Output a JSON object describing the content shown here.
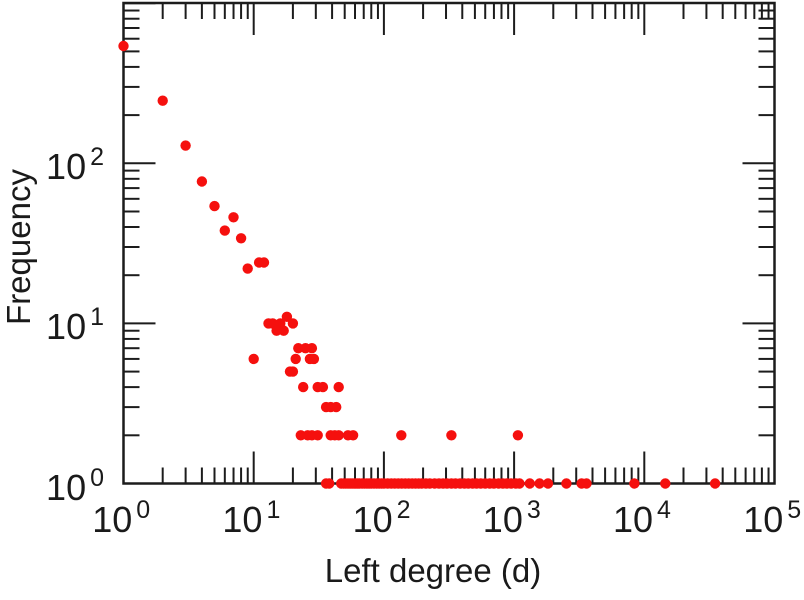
{
  "figure": {
    "background_color": "#ffffff",
    "axis_color": "#1c1c1c",
    "text_color": "#1a1a1a"
  },
  "chart_data": {
    "type": "scatter",
    "title": "",
    "xlabel": "Left degree (d)",
    "ylabel": "Frequency",
    "xscale": "log",
    "yscale": "log",
    "xlim": [
      1,
      100000
    ],
    "ylim": [
      1,
      1000
    ],
    "grid": false,
    "legend": null,
    "tick_base": "10",
    "x_tick_exponents": [
      0,
      1,
      2,
      3,
      4,
      5
    ],
    "y_tick_exponents": [
      0,
      1,
      2
    ],
    "marker_color": "#f5100e",
    "marker_radius": 5.2,
    "points": [
      [
        1,
        540
      ],
      [
        2,
        246
      ],
      [
        3,
        129
      ],
      [
        4,
        77
      ],
      [
        5,
        54
      ],
      [
        6,
        38
      ],
      [
        7,
        46
      ],
      [
        8,
        34
      ],
      [
        9,
        22
      ],
      [
        11,
        24
      ],
      [
        12,
        24
      ],
      [
        13,
        10
      ],
      [
        14,
        10
      ],
      [
        16,
        10
      ],
      [
        20,
        10
      ],
      [
        18,
        11
      ],
      [
        15,
        9
      ],
      [
        17,
        9
      ],
      [
        10,
        6
      ],
      [
        19,
        5
      ],
      [
        20,
        5
      ],
      [
        22,
        7
      ],
      [
        25,
        7
      ],
      [
        28,
        7
      ],
      [
        21,
        6
      ],
      [
        27,
        6
      ],
      [
        29,
        6
      ],
      [
        24,
        4
      ],
      [
        31,
        4
      ],
      [
        34,
        4
      ],
      [
        45,
        4
      ],
      [
        36,
        3
      ],
      [
        39,
        3
      ],
      [
        43,
        3
      ],
      [
        23,
        2
      ],
      [
        26,
        2
      ],
      [
        28,
        2
      ],
      [
        31,
        2
      ],
      [
        39,
        2
      ],
      [
        42,
        2
      ],
      [
        45,
        2
      ],
      [
        53,
        2
      ],
      [
        58,
        2
      ],
      [
        136,
        2
      ],
      [
        330,
        2
      ],
      [
        1070,
        2
      ],
      [
        36,
        1
      ],
      [
        38,
        1
      ],
      [
        47,
        1
      ],
      [
        49,
        1
      ],
      [
        51,
        1
      ],
      [
        53,
        1
      ],
      [
        55,
        1
      ],
      [
        57,
        1
      ],
      [
        59,
        1
      ],
      [
        61,
        1
      ],
      [
        63,
        1
      ],
      [
        65,
        1
      ],
      [
        68,
        1
      ],
      [
        71,
        1
      ],
      [
        74,
        1
      ],
      [
        77,
        1
      ],
      [
        80,
        1
      ],
      [
        84,
        1
      ],
      [
        88,
        1
      ],
      [
        92,
        1
      ],
      [
        96,
        1
      ],
      [
        100,
        1
      ],
      [
        107,
        1
      ],
      [
        114,
        1
      ],
      [
        121,
        1
      ],
      [
        129,
        1
      ],
      [
        137,
        1
      ],
      [
        146,
        1
      ],
      [
        155,
        1
      ],
      [
        165,
        1
      ],
      [
        175,
        1
      ],
      [
        185,
        1
      ],
      [
        195,
        1
      ],
      [
        210,
        1
      ],
      [
        225,
        1
      ],
      [
        245,
        1
      ],
      [
        265,
        1
      ],
      [
        285,
        1
      ],
      [
        305,
        1
      ],
      [
        330,
        1
      ],
      [
        355,
        1
      ],
      [
        385,
        1
      ],
      [
        415,
        1
      ],
      [
        445,
        1
      ],
      [
        480,
        1
      ],
      [
        515,
        1
      ],
      [
        555,
        1
      ],
      [
        600,
        1
      ],
      [
        650,
        1
      ],
      [
        700,
        1
      ],
      [
        760,
        1
      ],
      [
        820,
        1
      ],
      [
        880,
        1
      ],
      [
        950,
        1
      ],
      [
        1030,
        1
      ],
      [
        1100,
        1
      ],
      [
        1320,
        1
      ],
      [
        1570,
        1
      ],
      [
        1820,
        1
      ],
      [
        2520,
        1
      ],
      [
        3300,
        1
      ],
      [
        3600,
        1
      ],
      [
        8400,
        1
      ],
      [
        14500,
        1
      ],
      [
        35000,
        1
      ]
    ]
  }
}
